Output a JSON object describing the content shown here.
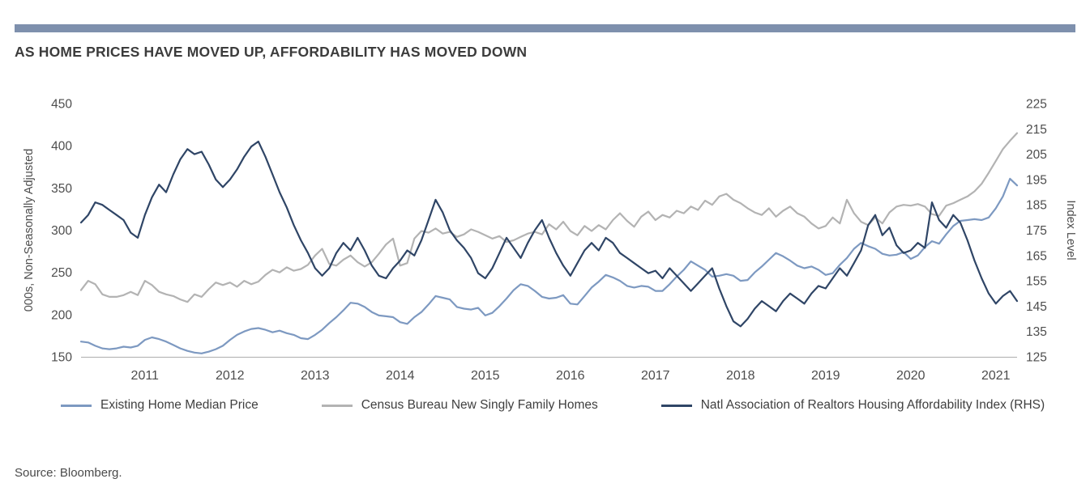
{
  "header": {
    "title": "AS HOME PRICES HAVE MOVED UP, AFFORDABILITY HAS MOVED DOWN",
    "accent_bar_color": "#7E90AD"
  },
  "footer": {
    "source": "Source: Bloomberg."
  },
  "chart_data": {
    "type": "line",
    "x_interval": "monthly",
    "x_start": "2010-04",
    "x_end": "2021-04",
    "x_year_labels": [
      2011,
      2012,
      2013,
      2014,
      2015,
      2016,
      2017,
      2018,
      2019,
      2020,
      2021
    ],
    "ylabel_left": "000s, Non-Seasonally Adjusted",
    "ylabel_right": "Index Level",
    "ylim_left": [
      150,
      450
    ],
    "yticks_left": [
      450,
      400,
      350,
      300,
      250,
      200,
      150
    ],
    "ylim_right": [
      125,
      225
    ],
    "yticks_right": [
      225,
      215,
      205,
      195,
      185,
      175,
      165,
      155,
      145,
      135,
      125
    ],
    "grid": false,
    "legend_position": "bottom",
    "series": [
      {
        "name": "Existing Home Median Price",
        "axis": "left",
        "color": "#7D99C1",
        "values": [
          168,
          167,
          163,
          160,
          159,
          160,
          162,
          161,
          163,
          170,
          173,
          171,
          168,
          164,
          160,
          157,
          155,
          154,
          156,
          159,
          163,
          170,
          176,
          180,
          183,
          184,
          182,
          179,
          181,
          178,
          176,
          172,
          171,
          176,
          182,
          190,
          197,
          205,
          214,
          213,
          209,
          203,
          199,
          198,
          197,
          191,
          189,
          197,
          203,
          212,
          222,
          220,
          218,
          209,
          207,
          206,
          208,
          199,
          202,
          210,
          219,
          229,
          236,
          234,
          228,
          221,
          219,
          220,
          223,
          213,
          212,
          222,
          232,
          239,
          247,
          244,
          240,
          234,
          232,
          234,
          233,
          228,
          228,
          236,
          245,
          253,
          263,
          258,
          253,
          245,
          246,
          248,
          246,
          240,
          241,
          250,
          257,
          265,
          273,
          269,
          264,
          258,
          255,
          257,
          253,
          247,
          249,
          259,
          267,
          278,
          285,
          281,
          278,
          272,
          270,
          271,
          274,
          266,
          270,
          280,
          287,
          284,
          295,
          305,
          311,
          312,
          313,
          312,
          315,
          326,
          340,
          361,
          353
        ]
      },
      {
        "name": "Census Bureau New Singly Family Homes",
        "axis": "left",
        "color": "#B3B3B3",
        "values": [
          229,
          240,
          236,
          224,
          221,
          221,
          223,
          227,
          223,
          240,
          235,
          227,
          224,
          222,
          218,
          215,
          224,
          221,
          230,
          238,
          235,
          238,
          233,
          240,
          236,
          239,
          247,
          253,
          250,
          256,
          252,
          254,
          259,
          270,
          278,
          260,
          258,
          265,
          270,
          262,
          257,
          262,
          272,
          283,
          290,
          258,
          261,
          290,
          299,
          297,
          302,
          296,
          298,
          292,
          295,
          301,
          298,
          294,
          290,
          293,
          286,
          288,
          292,
          296,
          298,
          295,
          307,
          301,
          310,
          299,
          294,
          305,
          299,
          306,
          301,
          312,
          320,
          311,
          304,
          316,
          322,
          312,
          318,
          315,
          323,
          320,
          328,
          324,
          335,
          330,
          340,
          343,
          336,
          332,
          326,
          321,
          318,
          326,
          316,
          323,
          328,
          320,
          316,
          308,
          302,
          305,
          315,
          308,
          336,
          320,
          310,
          306,
          315,
          308,
          321,
          328,
          330,
          329,
          331,
          328,
          319,
          317,
          329,
          332,
          336,
          340,
          346,
          355,
          368,
          382,
          396,
          406,
          415
        ]
      },
      {
        "name": "Natl Association of Realtors Housing Affordability Index (RHS)",
        "axis": "right",
        "color": "#2F4566",
        "values": [
          178,
          181,
          186,
          185,
          183,
          181,
          179,
          174,
          172,
          181,
          188,
          193,
          190,
          197,
          203,
          207,
          205,
          206,
          201,
          195,
          192,
          195,
          199,
          204,
          208,
          210,
          204,
          197,
          190,
          184,
          177,
          171,
          166,
          160,
          157,
          160,
          166,
          170,
          167,
          172,
          167,
          161,
          157,
          156,
          160,
          163,
          167,
          165,
          171,
          179,
          187,
          182,
          175,
          171,
          168,
          164,
          158,
          156,
          160,
          166,
          172,
          168,
          164,
          170,
          175,
          179,
          172,
          166,
          161,
          157,
          162,
          167,
          170,
          167,
          172,
          170,
          166,
          164,
          162,
          160,
          158,
          159,
          156,
          160,
          157,
          154,
          151,
          154,
          157,
          160,
          152,
          145,
          139,
          137,
          140,
          144,
          147,
          145,
          143,
          147,
          150,
          148,
          146,
          150,
          153,
          152,
          156,
          160,
          157,
          162,
          167,
          177,
          181,
          173,
          176,
          169,
          166,
          167,
          170,
          168,
          186,
          179,
          176,
          181,
          178,
          171,
          163,
          156,
          150,
          146,
          149,
          151,
          147
        ]
      }
    ]
  }
}
